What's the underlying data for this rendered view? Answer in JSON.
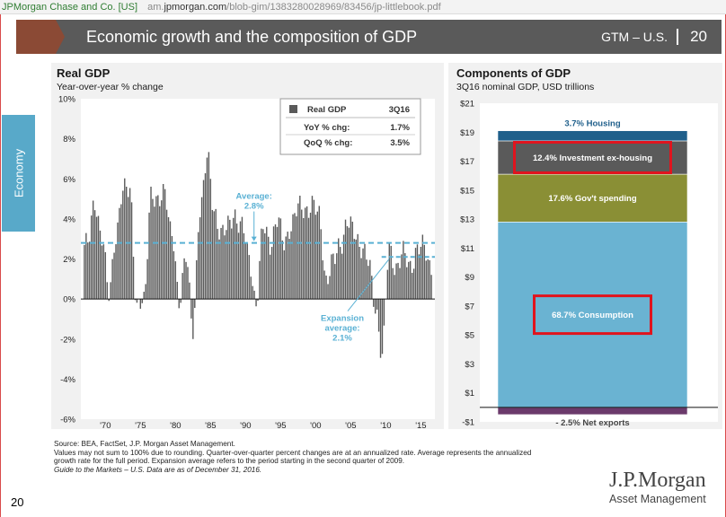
{
  "browser": {
    "site": "JPMorgan Chase and Co. [US]",
    "url_prefix": "am.",
    "url_domain": "jpmorgan.com",
    "url_path": "/blob-gim/1383280028969/83456/jp-littlebook.pdf"
  },
  "header": {
    "title": "Economic growth and the composition of GDP",
    "gtm": "GTM – U.S.",
    "page": "20"
  },
  "side_tab": "Economy",
  "footnotes": {
    "line1": "Source: BEA, FactSet, J.P. Morgan Asset Management.",
    "line2": "Values may not sum to 100% due to rounding. Quarter-over-quarter percent changes are at an annualized rate. Average represents the annualized",
    "line3": "growth rate for the full period. Expansion average refers to the period starting in the second quarter of 2009.",
    "line4": "Guide to the Markets – U.S. Data are as of December 31, 2016."
  },
  "page_number": "20",
  "logo": {
    "name": "J.P.Morgan",
    "sub": "Asset Management"
  },
  "colors": {
    "header_bg": "#5a5a5a",
    "chevron": "#8b4a35",
    "bar": "#5a5a5a",
    "average_line": "#5ab1d4",
    "housing": "#1f5f8b",
    "investment": "#5a5a5a",
    "gov": "#8a8f35",
    "consumption": "#6ab3d2",
    "net_exports": "#6b3a6b",
    "highlight": "#e0141e"
  },
  "chart_data": [
    {
      "type": "bar",
      "title": "Real GDP",
      "subtitle": "Year-over-year % change",
      "x_tick_labels": [
        "'70",
        "'75",
        "'80",
        "'85",
        "'90",
        "'95",
        "'00",
        "'05",
        "'10",
        "'15"
      ],
      "x_tick_years": [
        1970,
        1975,
        1980,
        1985,
        1990,
        1995,
        2000,
        2005,
        2010,
        2015
      ],
      "y_tick_labels": [
        "10%",
        "8%",
        "6%",
        "4%",
        "2%",
        "0%",
        "-2%",
        "-4%",
        "-6%"
      ],
      "ylim": [
        -6,
        10
      ],
      "xlim": [
        1966.5,
        2017
      ],
      "annual_yoy": [
        {
          "year": 1967,
          "value": 2.7
        },
        {
          "year": 1968,
          "value": 4.9
        },
        {
          "year": 1969,
          "value": 3.1
        },
        {
          "year": 1970,
          "value": 0.2
        },
        {
          "year": 1971,
          "value": 3.3
        },
        {
          "year": 1972,
          "value": 5.3
        },
        {
          "year": 1973,
          "value": 5.6
        },
        {
          "year": 1974,
          "value": -0.5
        },
        {
          "year": 1975,
          "value": -0.2
        },
        {
          "year": 1976,
          "value": 5.4
        },
        {
          "year": 1977,
          "value": 4.6
        },
        {
          "year": 1978,
          "value": 5.5
        },
        {
          "year": 1979,
          "value": 3.2
        },
        {
          "year": 1980,
          "value": -0.3
        },
        {
          "year": 1981,
          "value": 2.5
        },
        {
          "year": 1982,
          "value": -1.8
        },
        {
          "year": 1983,
          "value": 4.6
        },
        {
          "year": 1984,
          "value": 7.2
        },
        {
          "year": 1985,
          "value": 4.2
        },
        {
          "year": 1986,
          "value": 3.5
        },
        {
          "year": 1987,
          "value": 3.5
        },
        {
          "year": 1988,
          "value": 4.2
        },
        {
          "year": 1989,
          "value": 3.7
        },
        {
          "year": 1990,
          "value": 1.9
        },
        {
          "year": 1991,
          "value": -0.1
        },
        {
          "year": 1992,
          "value": 3.5
        },
        {
          "year": 1993,
          "value": 2.8
        },
        {
          "year": 1994,
          "value": 4.0
        },
        {
          "year": 1995,
          "value": 2.7
        },
        {
          "year": 1996,
          "value": 3.8
        },
        {
          "year": 1997,
          "value": 4.5
        },
        {
          "year": 1998,
          "value": 4.5
        },
        {
          "year": 1999,
          "value": 4.7
        },
        {
          "year": 2000,
          "value": 4.1
        },
        {
          "year": 2001,
          "value": 1.0
        },
        {
          "year": 2002,
          "value": 1.8
        },
        {
          "year": 2003,
          "value": 2.8
        },
        {
          "year": 2004,
          "value": 3.8
        },
        {
          "year": 2005,
          "value": 3.3
        },
        {
          "year": 2006,
          "value": 2.7
        },
        {
          "year": 2007,
          "value": 1.8
        },
        {
          "year": 2008,
          "value": -0.3
        },
        {
          "year": 2009,
          "value": -2.8
        },
        {
          "year": 2010,
          "value": 2.5
        },
        {
          "year": 2011,
          "value": 1.6
        },
        {
          "year": 2012,
          "value": 2.2
        },
        {
          "year": 2013,
          "value": 1.7
        },
        {
          "year": 2014,
          "value": 2.4
        },
        {
          "year": 2015,
          "value": 2.6
        },
        {
          "year": 2016,
          "value": 1.6
        }
      ],
      "average": {
        "label": "Average:",
        "value_label": "2.8%",
        "value": 2.8
      },
      "expansion_average": {
        "label_lines": [
          "Expansion",
          "average:",
          "2.1%"
        ],
        "value": 2.1,
        "start_year": 2009.4
      },
      "table": {
        "header": [
          "Real GDP",
          "3Q16"
        ],
        "rows": [
          {
            "label": "YoY % chg:",
            "value": "1.7%"
          },
          {
            "label": "QoQ % chg:",
            "value": "3.5%"
          }
        ]
      }
    },
    {
      "type": "bar",
      "title": "Components of GDP",
      "subtitle": "3Q16 nominal GDP, USD trillions",
      "y_tick_labels": [
        "$21",
        "$19",
        "$17",
        "$15",
        "$13",
        "$11",
        "$9",
        "$7",
        "$5",
        "$3",
        "$1",
        "-$1"
      ],
      "ylim": [
        -1,
        21
      ],
      "total": 18.6,
      "segments": [
        {
          "name": "Consumption",
          "label": "68.7% Consumption",
          "share_pct": 68.7,
          "value": 12.8,
          "highlighted": true
        },
        {
          "name": "Gov't spending",
          "label": "17.6% Gov't spending",
          "share_pct": 17.6,
          "value": 3.3,
          "highlighted": false
        },
        {
          "name": "Investment ex-housing",
          "label": "12.4% Investment ex-housing",
          "share_pct": 12.4,
          "value": 2.3,
          "highlighted": true
        },
        {
          "name": "Housing",
          "label": "3.7% Housing",
          "share_pct": 3.7,
          "value": 0.7,
          "highlighted": false
        },
        {
          "name": "Net exports",
          "label": "- 2.5%  Net exports",
          "share_pct": -2.5,
          "value": -0.5,
          "highlighted": false
        }
      ]
    }
  ]
}
